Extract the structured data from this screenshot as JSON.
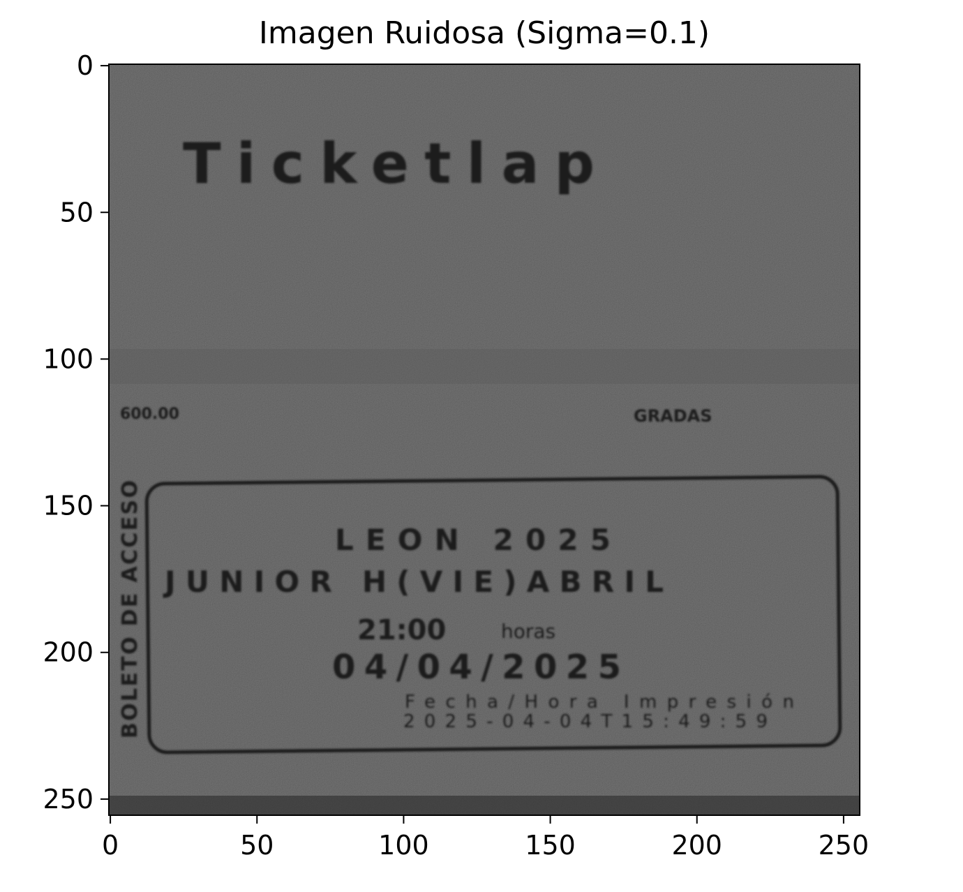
{
  "chart_data": {
    "type": "heatmap",
    "title": "Imagen Ruidosa (Sigma=0.1)",
    "xlabel": "",
    "ylabel": "",
    "xlim": [
      -0.5,
      255.5
    ],
    "ylim": [
      255.5,
      -0.5
    ],
    "xticks": [
      0,
      50,
      100,
      150,
      200,
      250
    ],
    "yticks": [
      0,
      50,
      100,
      150,
      200,
      250
    ],
    "colormap": "gray",
    "grid": false,
    "image_content": {
      "description_free": true,
      "ticket_logo_text": "Ticketlap",
      "price_text": "600.00",
      "section_text": "GRADAS",
      "event_line1": "LEON 2025",
      "event_line2": "JUNIOR H(VIE)ABRIL",
      "time_text": "21:00",
      "time_unit": "horas",
      "date_text": "04/04/2025",
      "print_label": "Fecha/Hora Impresión",
      "print_value": "2025-04-04T15:49:59",
      "side_text": "BOLETO DE ACCESO"
    }
  }
}
